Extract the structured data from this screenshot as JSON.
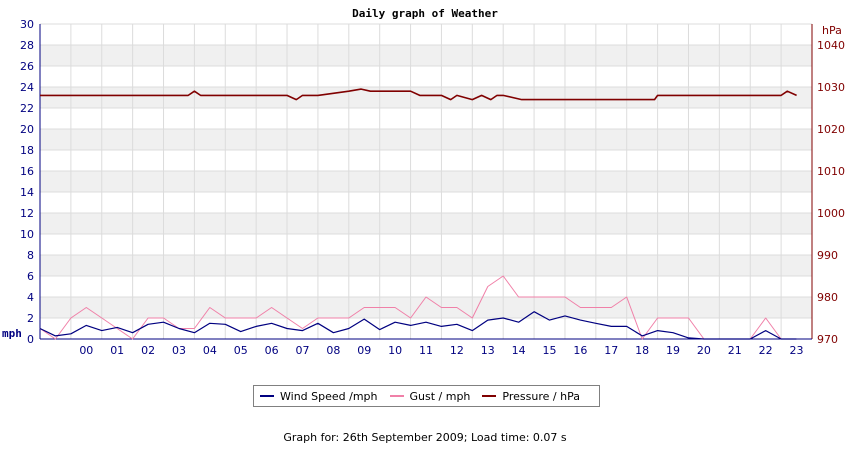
{
  "chart_data": {
    "type": "line",
    "title": "Daily graph of Weather",
    "x_tick_labels": [
      "00",
      "01",
      "02",
      "03",
      "04",
      "05",
      "06",
      "07",
      "08",
      "09",
      "10",
      "11",
      "12",
      "13",
      "14",
      "15",
      "16",
      "17",
      "18",
      "19",
      "20",
      "21",
      "22",
      "23"
    ],
    "x_range_hours": [
      -1,
      24
    ],
    "left_axis": {
      "unit": "mph",
      "range": [
        0,
        30
      ],
      "ticks": [
        "0",
        "2",
        "4",
        "6",
        "8",
        "10",
        "12",
        "14",
        "16",
        "18",
        "20",
        "22",
        "24",
        "26",
        "28",
        "30"
      ]
    },
    "right_axis": {
      "unit": "hPa",
      "range": [
        970,
        1045
      ],
      "ticks": [
        "970",
        "980",
        "990",
        "1000",
        "1010",
        "1020",
        "1030",
        "1040"
      ]
    },
    "grid": true,
    "series": [
      {
        "name": "Wind Speed /mph",
        "axis": "left",
        "color": "#000080",
        "x": [
          -1,
          -0.5,
          0,
          0.5,
          1,
          1.5,
          2,
          2.5,
          3,
          3.5,
          4,
          4.5,
          5,
          5.5,
          6,
          6.5,
          7,
          7.5,
          8,
          8.5,
          9,
          9.5,
          10,
          10.5,
          11,
          11.5,
          12,
          12.5,
          13,
          13.5,
          14,
          14.5,
          15,
          15.5,
          16,
          16.5,
          17,
          17.5,
          18,
          18.5,
          19,
          19.5,
          20,
          20.5,
          21,
          21.5,
          22,
          22.5,
          23,
          23.5
        ],
        "y": [
          1,
          0.3,
          0.5,
          1.3,
          0.8,
          1.1,
          0.6,
          1.4,
          1.6,
          1.0,
          0.6,
          1.5,
          1.4,
          0.7,
          1.2,
          1.5,
          1.0,
          0.8,
          1.5,
          0.6,
          1.0,
          1.9,
          0.9,
          1.6,
          1.3,
          1.6,
          1.2,
          1.4,
          0.8,
          1.8,
          2.0,
          1.6,
          2.6,
          1.8,
          2.2,
          1.8,
          1.5,
          1.2,
          1.2,
          0.3,
          0.8,
          0.6,
          0.1,
          0,
          0,
          0,
          0,
          0.8,
          0,
          0
        ]
      },
      {
        "name": "Gust / mph",
        "axis": "left",
        "color": "#f080a8",
        "x": [
          -1,
          -0.5,
          0,
          0.5,
          1,
          1.5,
          2,
          2.5,
          3,
          3.5,
          4,
          4.5,
          5,
          5.5,
          6,
          6.5,
          7,
          7.5,
          8,
          8.5,
          9,
          9.5,
          10,
          10.5,
          11,
          11.5,
          12,
          12.5,
          13,
          13.5,
          14,
          14.5,
          15,
          15.5,
          16,
          16.5,
          17,
          17.5,
          18,
          18.5,
          19,
          19.5,
          20,
          20.5,
          21,
          21.5,
          22,
          22.5,
          23,
          23.5
        ],
        "y": [
          1,
          0,
          2,
          3,
          2,
          1,
          0,
          2,
          2,
          1,
          1,
          3,
          2,
          2,
          2,
          3,
          2,
          1,
          2,
          2,
          2,
          3,
          3,
          3,
          2,
          4,
          3,
          3,
          2,
          5,
          6,
          4,
          4,
          4,
          4,
          3,
          3,
          3,
          4,
          0,
          2,
          2,
          2,
          0,
          0,
          0,
          0,
          2,
          0,
          0
        ]
      },
      {
        "name": "Pressure / hPa",
        "axis": "right",
        "color": "#800000",
        "x": [
          -1,
          3.8,
          4,
          4.2,
          7,
          7.3,
          7.5,
          8,
          9,
          9.4,
          9.7,
          10,
          11,
          11.3,
          12,
          12.3,
          12.5,
          13,
          13.3,
          13.6,
          13.8,
          14,
          14.6,
          15,
          16,
          17,
          18,
          18.9,
          19,
          20,
          21,
          22,
          23,
          23.2,
          23.5
        ],
        "y": [
          1028,
          1028,
          1029,
          1028,
          1028,
          1027,
          1028,
          1028,
          1029,
          1029.5,
          1029,
          1029,
          1029,
          1028,
          1028,
          1027,
          1028,
          1027,
          1028,
          1027,
          1028,
          1028,
          1027,
          1027,
          1027,
          1027,
          1027,
          1027,
          1028,
          1028,
          1028,
          1028,
          1028,
          1029,
          1028
        ]
      }
    ],
    "legend": {
      "position": "bottom",
      "items": [
        {
          "label": "Wind Speed /mph",
          "color": "#000080"
        },
        {
          "label": "Gust / mph",
          "color": "#f080a8"
        },
        {
          "label": "Pressure / hPa",
          "color": "#800000"
        }
      ]
    },
    "footer": "Graph for: 26th September 2009; Load time: 0.07 s"
  }
}
